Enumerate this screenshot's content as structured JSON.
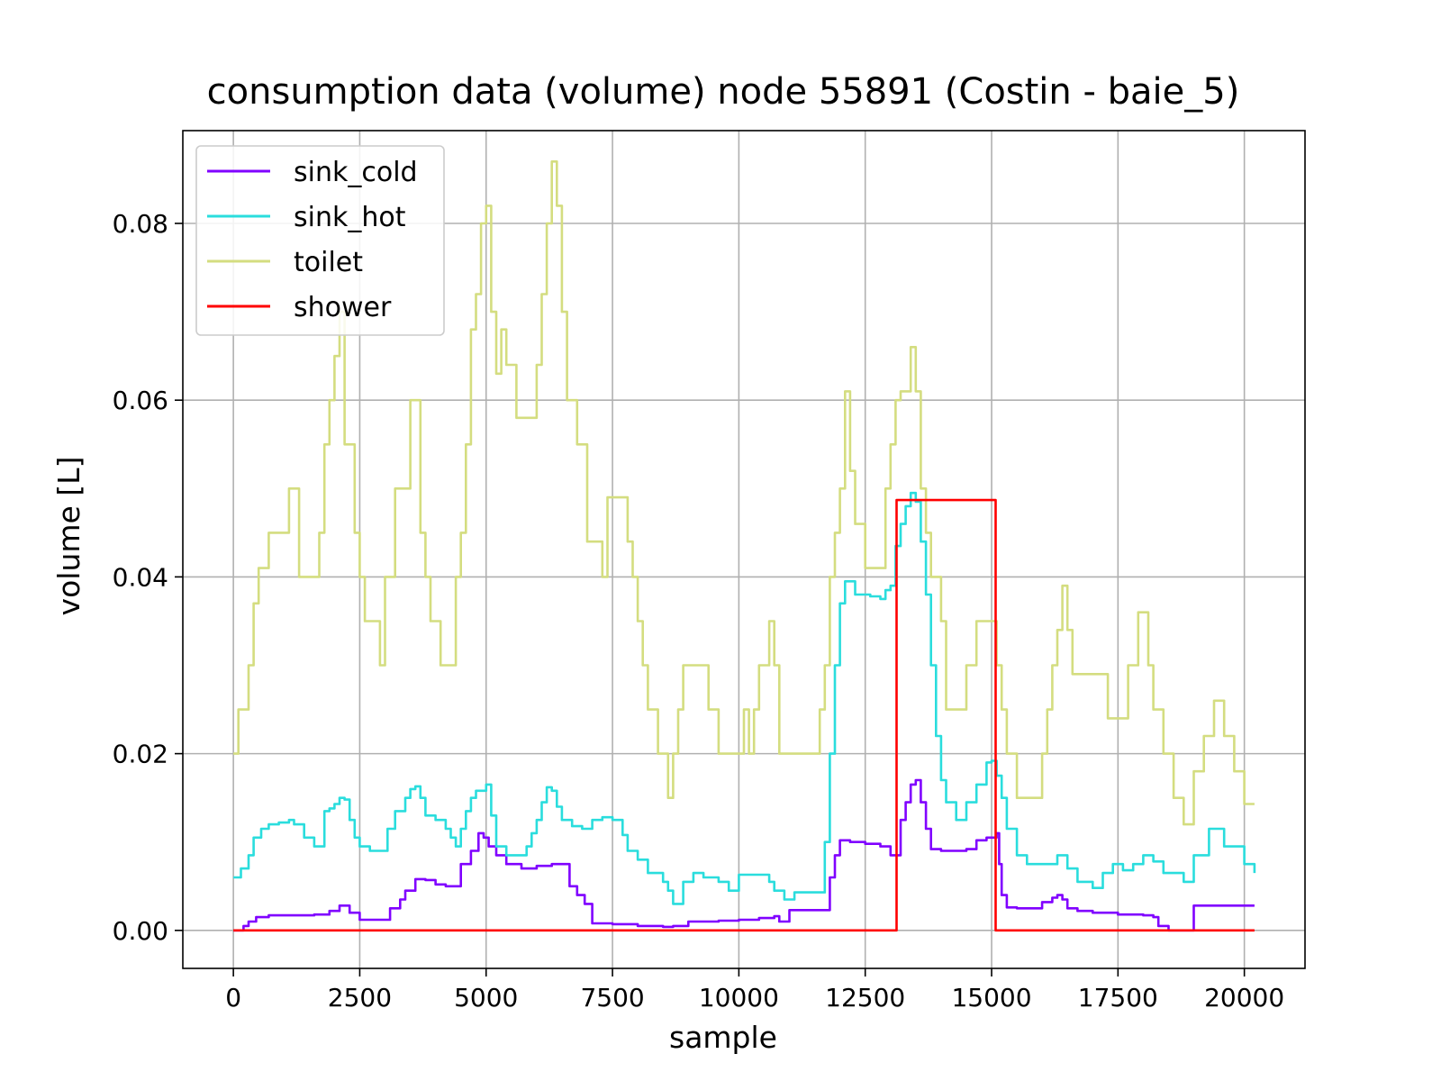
{
  "chart_data": {
    "type": "line",
    "title": "consumption data (volume) node 55891 (Costin - baie_5)",
    "xlabel": "sample",
    "ylabel": "volume [L]",
    "xlim": [
      -1000,
      21200
    ],
    "ylim": [
      -0.0043,
      0.0905
    ],
    "xticks": [
      0,
      2500,
      5000,
      7500,
      10000,
      12500,
      15000,
      17500,
      20000
    ],
    "xtick_labels": [
      "0",
      "2500",
      "5000",
      "7500",
      "10000",
      "12500",
      "15000",
      "17500",
      "20000"
    ],
    "yticks": [
      0.0,
      0.02,
      0.04,
      0.06,
      0.08
    ],
    "ytick_labels": [
      "0.00",
      "0.02",
      "0.04",
      "0.06",
      "0.08"
    ],
    "grid": true,
    "legend_position": "upper-left",
    "series": [
      {
        "name": "sink_cold",
        "color": "#8000ff",
        "x": [
          0,
          200,
          300,
          450,
          700,
          1000,
          1300,
          1600,
          1900,
          2100,
          2300,
          2500,
          2700,
          2950,
          3100,
          3300,
          3400,
          3600,
          3800,
          4000,
          4200,
          4400,
          4500,
          4700,
          4850,
          4950,
          5050,
          5200,
          5400,
          5700,
          6000,
          6300,
          6500,
          6650,
          6800,
          6950,
          7100,
          7500,
          8000,
          8500,
          8700,
          9000,
          9600,
          10000,
          10400,
          10700,
          10800,
          11000,
          11400,
          11700,
          11800,
          11900,
          12000,
          12200,
          12500,
          12800,
          13000,
          13100,
          13200,
          13300,
          13400,
          13500,
          13600,
          13700,
          13800,
          14000,
          14300,
          14500,
          14700,
          14900,
          15100,
          15150,
          15200,
          15300,
          15500,
          15800,
          16000,
          16200,
          16300,
          16400,
          16500,
          16700,
          17000,
          17500,
          18000,
          18200,
          18300,
          18500,
          18900,
          19000,
          19500,
          20000,
          20200
        ],
        "values": [
          0.0,
          0.0005,
          0.001,
          0.0015,
          0.0017,
          0.0017,
          0.0017,
          0.0018,
          0.0022,
          0.0028,
          0.002,
          0.0012,
          0.0012,
          0.0012,
          0.0025,
          0.0035,
          0.0045,
          0.0058,
          0.0057,
          0.0052,
          0.005,
          0.005,
          0.0075,
          0.009,
          0.011,
          0.0105,
          0.0095,
          0.0085,
          0.0075,
          0.007,
          0.0073,
          0.0075,
          0.0075,
          0.005,
          0.004,
          0.003,
          0.0008,
          0.0007,
          0.0005,
          0.0004,
          0.0005,
          0.001,
          0.0011,
          0.0012,
          0.0014,
          0.0016,
          0.001,
          0.0023,
          0.0023,
          0.0023,
          0.006,
          0.0085,
          0.0102,
          0.01,
          0.0098,
          0.0095,
          0.0085,
          0.0085,
          0.0125,
          0.0145,
          0.0165,
          0.017,
          0.0145,
          0.0115,
          0.0092,
          0.009,
          0.009,
          0.0092,
          0.0102,
          0.0105,
          0.011,
          0.0075,
          0.004,
          0.0026,
          0.0025,
          0.0025,
          0.0032,
          0.0037,
          0.004,
          0.0035,
          0.0025,
          0.0022,
          0.002,
          0.0018,
          0.0017,
          0.0015,
          0.0005,
          0.0,
          0.0,
          0.0028,
          0.0028,
          0.0028,
          0.0028
        ]
      },
      {
        "name": "sink_hot",
        "color": "#2adddd",
        "x": [
          0,
          150,
          300,
          400,
          550,
          700,
          900,
          1100,
          1200,
          1400,
          1600,
          1800,
          1900,
          2000,
          2100,
          2200,
          2300,
          2400,
          2500,
          2700,
          2900,
          3050,
          3200,
          3400,
          3500,
          3600,
          3700,
          3800,
          4000,
          4200,
          4300,
          4400,
          4500,
          4600,
          4700,
          4800,
          5000,
          5100,
          5200,
          5400,
          5600,
          5700,
          5800,
          5900,
          6000,
          6100,
          6200,
          6300,
          6400,
          6500,
          6700,
          6900,
          7100,
          7300,
          7500,
          7700,
          7800,
          8000,
          8200,
          8500,
          8600,
          8700,
          8900,
          9100,
          9300,
          9600,
          9800,
          10000,
          10300,
          10600,
          10700,
          10900,
          11100,
          11400,
          11600,
          11700,
          11800,
          11900,
          12000,
          12100,
          12300,
          12600,
          12800,
          12900,
          13000,
          13100,
          13200,
          13300,
          13400,
          13500,
          13600,
          13700,
          13800,
          13900,
          14000,
          14100,
          14300,
          14500,
          14700,
          14900,
          15000,
          15100,
          15200,
          15300,
          15500,
          15700,
          16000,
          16300,
          16500,
          16700,
          17000,
          17200,
          17400,
          17600,
          17800,
          18000,
          18200,
          18400,
          18600,
          18800,
          19000,
          19300,
          19600,
          20000,
          20200
        ],
        "values": [
          0.006,
          0.007,
          0.0085,
          0.0105,
          0.0115,
          0.012,
          0.0122,
          0.0125,
          0.012,
          0.0105,
          0.0095,
          0.0135,
          0.0138,
          0.0143,
          0.015,
          0.0148,
          0.0125,
          0.0105,
          0.0095,
          0.009,
          0.009,
          0.0115,
          0.0135,
          0.015,
          0.016,
          0.0163,
          0.015,
          0.013,
          0.0125,
          0.0115,
          0.0105,
          0.0095,
          0.0115,
          0.0135,
          0.015,
          0.0158,
          0.0165,
          0.013,
          0.0095,
          0.0085,
          0.0085,
          0.0085,
          0.0095,
          0.011,
          0.0125,
          0.0145,
          0.0162,
          0.0158,
          0.014,
          0.0125,
          0.0118,
          0.0115,
          0.0125,
          0.0128,
          0.0125,
          0.0108,
          0.009,
          0.008,
          0.0065,
          0.0055,
          0.0045,
          0.003,
          0.0055,
          0.0065,
          0.006,
          0.0055,
          0.0045,
          0.0063,
          0.0063,
          0.0055,
          0.0045,
          0.0035,
          0.0043,
          0.0043,
          0.0043,
          0.01,
          0.02,
          0.03,
          0.037,
          0.0395,
          0.038,
          0.0378,
          0.0375,
          0.0385,
          0.039,
          0.0435,
          0.046,
          0.048,
          0.0495,
          0.0485,
          0.044,
          0.038,
          0.03,
          0.022,
          0.017,
          0.0145,
          0.0125,
          0.0145,
          0.0165,
          0.019,
          0.0192,
          0.0175,
          0.015,
          0.0115,
          0.0085,
          0.0075,
          0.0075,
          0.0085,
          0.007,
          0.0055,
          0.0048,
          0.0065,
          0.0075,
          0.0068,
          0.0075,
          0.0085,
          0.0078,
          0.0065,
          0.0065,
          0.0055,
          0.0085,
          0.0115,
          0.0095,
          0.0075,
          0.0065
        ]
      },
      {
        "name": "toilet",
        "color": "#d4dd80",
        "x": [
          0,
          100,
          300,
          400,
          500,
          700,
          900,
          1100,
          1300,
          1600,
          1700,
          1800,
          1900,
          2000,
          2100,
          2200,
          2400,
          2500,
          2600,
          2800,
          2900,
          3000,
          3200,
          3300,
          3500,
          3700,
          3800,
          3900,
          4100,
          4300,
          4400,
          4500,
          4600,
          4700,
          4800,
          4900,
          5000,
          5100,
          5200,
          5300,
          5400,
          5600,
          5800,
          6000,
          6100,
          6200,
          6300,
          6400,
          6500,
          6600,
          6800,
          7000,
          7200,
          7300,
          7400,
          7600,
          7800,
          7900,
          8000,
          8100,
          8200,
          8400,
          8600,
          8700,
          8800,
          8900,
          9200,
          9400,
          9600,
          9800,
          10000,
          10100,
          10200,
          10300,
          10400,
          10600,
          10700,
          10800,
          11000,
          11200,
          11500,
          11600,
          11700,
          11800,
          11900,
          12000,
          12100,
          12200,
          12300,
          12400,
          12500,
          12600,
          12700,
          12800,
          12900,
          13000,
          13100,
          13200,
          13300,
          13400,
          13500,
          13600,
          13700,
          13800,
          13900,
          14000,
          14100,
          14300,
          14500,
          14700,
          14900,
          15000,
          15100,
          15200,
          15300,
          15400,
          15500,
          15700,
          16000,
          16100,
          16200,
          16300,
          16400,
          16500,
          16600,
          16900,
          17100,
          17300,
          17500,
          17700,
          17900,
          18000,
          18100,
          18200,
          18400,
          18600,
          18800,
          18900,
          19000,
          19200,
          19400,
          19600,
          19800,
          20000,
          20200
        ],
        "values": [
          0.02,
          0.025,
          0.03,
          0.037,
          0.041,
          0.045,
          0.045,
          0.05,
          0.04,
          0.04,
          0.045,
          0.055,
          0.06,
          0.065,
          0.07,
          0.055,
          0.045,
          0.04,
          0.035,
          0.035,
          0.03,
          0.04,
          0.05,
          0.05,
          0.06,
          0.045,
          0.04,
          0.035,
          0.03,
          0.03,
          0.04,
          0.045,
          0.055,
          0.068,
          0.072,
          0.08,
          0.082,
          0.07,
          0.063,
          0.068,
          0.064,
          0.058,
          0.058,
          0.064,
          0.072,
          0.08,
          0.087,
          0.082,
          0.07,
          0.06,
          0.055,
          0.044,
          0.044,
          0.04,
          0.049,
          0.049,
          0.044,
          0.04,
          0.035,
          0.03,
          0.025,
          0.02,
          0.015,
          0.02,
          0.025,
          0.03,
          0.03,
          0.025,
          0.02,
          0.02,
          0.02,
          0.025,
          0.02,
          0.025,
          0.03,
          0.035,
          0.03,
          0.02,
          0.02,
          0.02,
          0.02,
          0.025,
          0.03,
          0.04,
          0.045,
          0.05,
          0.061,
          0.052,
          0.046,
          0.046,
          0.041,
          0.041,
          0.041,
          0.041,
          0.05,
          0.055,
          0.06,
          0.061,
          0.061,
          0.066,
          0.061,
          0.05,
          0.045,
          0.04,
          0.04,
          0.035,
          0.025,
          0.025,
          0.03,
          0.035,
          0.035,
          0.035,
          0.03,
          0.025,
          0.02,
          0.02,
          0.015,
          0.015,
          0.02,
          0.025,
          0.03,
          0.034,
          0.039,
          0.034,
          0.029,
          0.029,
          0.029,
          0.024,
          0.024,
          0.03,
          0.036,
          0.036,
          0.03,
          0.025,
          0.02,
          0.015,
          0.012,
          0.012,
          0.018,
          0.022,
          0.026,
          0.022,
          0.018,
          0.0143,
          0.0143
        ]
      },
      {
        "name": "shower",
        "color": "#ff0000",
        "x": [
          0,
          13100,
          13120,
          15050,
          15080,
          20200
        ],
        "values": [
          0.0,
          0.0,
          0.0487,
          0.0487,
          0.0,
          0.0
        ]
      }
    ]
  }
}
